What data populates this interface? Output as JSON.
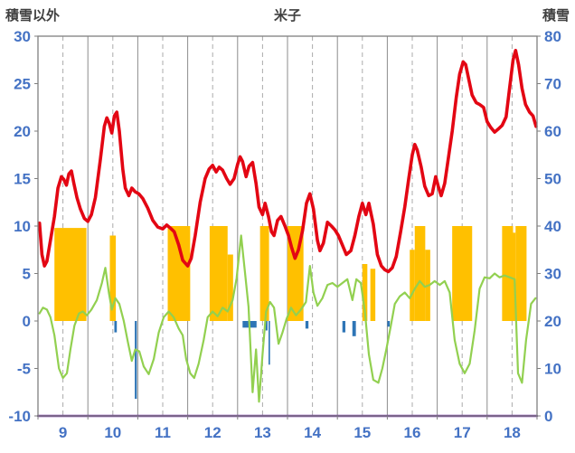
{
  "header": {
    "left_label": "積雪以外",
    "title": "米子",
    "right_label": "積雪"
  },
  "colors": {
    "axis_text": "#4472c4",
    "header_text": "#404040",
    "red_line": "#e30613",
    "green_line": "#92d050",
    "orange_bars": "#ffc000",
    "blue_bars": "#2e75b6",
    "purple_line": "#7030a0",
    "grid_major": "#8c8c8c",
    "grid_minor": "#ababab",
    "border": "#7f7f7f"
  },
  "chart_data": {
    "type": "line",
    "title": "米子",
    "left_axis": {
      "label": "積雪以外",
      "min": -10,
      "max": 30,
      "ticks": [
        -10,
        -5,
        0,
        5,
        10,
        15,
        20,
        25,
        30
      ]
    },
    "right_axis": {
      "label": "積雪",
      "min": 0,
      "max": 80,
      "ticks": [
        0,
        10,
        20,
        30,
        40,
        50,
        60,
        70,
        80
      ]
    },
    "x_axis": {
      "labels": [
        "9",
        "10",
        "11",
        "12",
        "13",
        "14",
        "15",
        "16",
        "17",
        "18"
      ],
      "range": [
        0,
        10
      ]
    },
    "grid": {
      "major_on": true,
      "minor_dashed": true
    },
    "series": [
      {
        "name": "orange-bars",
        "type": "bars",
        "axis": "left",
        "color": "#ffc000",
        "segments": [
          [
            0.33,
            0.97,
            9.8
          ],
          [
            1.44,
            1.56,
            9.0
          ],
          [
            2.6,
            3.05,
            10
          ],
          [
            3.44,
            3.8,
            10
          ],
          [
            3.8,
            3.91,
            7.0
          ],
          [
            4.45,
            4.63,
            10
          ],
          [
            5.0,
            5.32,
            10
          ],
          [
            6.5,
            6.6,
            6.0
          ],
          [
            6.66,
            6.76,
            5.5
          ],
          [
            7.45,
            7.55,
            7.5
          ],
          [
            7.55,
            7.76,
            10
          ],
          [
            7.76,
            7.86,
            7.5
          ],
          [
            8.3,
            8.7,
            10
          ],
          [
            9.3,
            9.52,
            10
          ],
          [
            9.52,
            9.57,
            9.3
          ],
          [
            9.57,
            9.79,
            10
          ]
        ]
      },
      {
        "name": "blue-bars",
        "type": "bars",
        "axis": "left",
        "color": "#2e75b6",
        "segments": [
          [
            1.53,
            1.58,
            -1.2
          ],
          [
            1.94,
            1.98,
            -8.2
          ],
          [
            4.1,
            4.38,
            -0.7
          ],
          [
            4.56,
            4.6,
            -1.0
          ],
          [
            4.62,
            4.65,
            -4.6
          ],
          [
            5.36,
            5.42,
            -0.8
          ],
          [
            6.1,
            6.16,
            -1.2
          ],
          [
            6.3,
            6.37,
            -1.6
          ],
          [
            7.0,
            7.05,
            -0.6
          ]
        ]
      },
      {
        "name": "purple-baseline",
        "type": "line",
        "axis": "right",
        "color": "#7030a0",
        "width": 2.5,
        "points": [
          [
            0,
            0
          ],
          [
            10,
            0
          ]
        ]
      },
      {
        "name": "green-line",
        "type": "line",
        "axis": "left",
        "color": "#92d050",
        "width": 2.2,
        "points": [
          [
            0.03,
            0.8
          ],
          [
            0.1,
            1.4
          ],
          [
            0.18,
            1.2
          ],
          [
            0.25,
            0.4
          ],
          [
            0.33,
            -1.5
          ],
          [
            0.42,
            -5.0
          ],
          [
            0.5,
            -6.0
          ],
          [
            0.58,
            -5.5
          ],
          [
            0.65,
            -3.0
          ],
          [
            0.73,
            -0.5
          ],
          [
            0.82,
            0.8
          ],
          [
            0.9,
            1.0
          ],
          [
            0.98,
            0.6
          ],
          [
            1.07,
            1.2
          ],
          [
            1.18,
            2.2
          ],
          [
            1.28,
            4.0
          ],
          [
            1.35,
            5.6
          ],
          [
            1.42,
            3.0
          ],
          [
            1.48,
            1.2
          ],
          [
            1.55,
            2.4
          ],
          [
            1.63,
            1.8
          ],
          [
            1.72,
            0.0
          ],
          [
            1.8,
            -2.2
          ],
          [
            1.88,
            -4.2
          ],
          [
            1.95,
            -3.0
          ],
          [
            2.03,
            -3.2
          ],
          [
            2.12,
            -4.8
          ],
          [
            2.22,
            -5.6
          ],
          [
            2.32,
            -4.0
          ],
          [
            2.42,
            -1.2
          ],
          [
            2.52,
            0.4
          ],
          [
            2.62,
            1.0
          ],
          [
            2.72,
            0.4
          ],
          [
            2.82,
            -0.8
          ],
          [
            2.9,
            -1.5
          ],
          [
            2.97,
            -4.0
          ],
          [
            3.05,
            -5.5
          ],
          [
            3.13,
            -6.0
          ],
          [
            3.22,
            -4.5
          ],
          [
            3.32,
            -2.0
          ],
          [
            3.4,
            0.4
          ],
          [
            3.5,
            1.0
          ],
          [
            3.6,
            0.5
          ],
          [
            3.7,
            1.4
          ],
          [
            3.8,
            1.0
          ],
          [
            3.9,
            2.2
          ],
          [
            3.98,
            4.5
          ],
          [
            4.07,
            9.0
          ],
          [
            4.15,
            5.0
          ],
          [
            4.22,
            1.5
          ],
          [
            4.3,
            -7.5
          ],
          [
            4.37,
            -3.0
          ],
          [
            4.43,
            -8.5
          ],
          [
            4.5,
            -3.5
          ],
          [
            4.57,
            1.0
          ],
          [
            4.65,
            2.0
          ],
          [
            4.73,
            1.4
          ],
          [
            4.82,
            -2.4
          ],
          [
            4.9,
            -1.2
          ],
          [
            4.98,
            0.2
          ],
          [
            5.07,
            1.4
          ],
          [
            5.17,
            0.6
          ],
          [
            5.27,
            1.2
          ],
          [
            5.37,
            2.0
          ],
          [
            5.45,
            5.8
          ],
          [
            5.52,
            3.0
          ],
          [
            5.6,
            1.6
          ],
          [
            5.7,
            2.4
          ],
          [
            5.8,
            3.8
          ],
          [
            5.9,
            4.0
          ],
          [
            6.0,
            3.6
          ],
          [
            6.1,
            4.0
          ],
          [
            6.2,
            4.4
          ],
          [
            6.3,
            2.2
          ],
          [
            6.38,
            4.4
          ],
          [
            6.47,
            4.0
          ],
          [
            6.55,
            1.0
          ],
          [
            6.63,
            -3.5
          ],
          [
            6.72,
            -6.2
          ],
          [
            6.82,
            -6.5
          ],
          [
            6.9,
            -5.0
          ],
          [
            6.98,
            -3.0
          ],
          [
            7.07,
            -0.5
          ],
          [
            7.15,
            1.8
          ],
          [
            7.25,
            2.6
          ],
          [
            7.35,
            3.0
          ],
          [
            7.45,
            2.4
          ],
          [
            7.55,
            3.4
          ],
          [
            7.65,
            4.2
          ],
          [
            7.75,
            3.6
          ],
          [
            7.85,
            3.8
          ],
          [
            7.95,
            4.2
          ],
          [
            8.05,
            3.8
          ],
          [
            8.15,
            4.2
          ],
          [
            8.25,
            3.0
          ],
          [
            8.35,
            -2.0
          ],
          [
            8.45,
            -4.5
          ],
          [
            8.55,
            -5.5
          ],
          [
            8.65,
            -4.5
          ],
          [
            8.75,
            -1.0
          ],
          [
            8.85,
            3.4
          ],
          [
            8.95,
            4.6
          ],
          [
            9.05,
            4.5
          ],
          [
            9.15,
            5.0
          ],
          [
            9.25,
            4.6
          ],
          [
            9.35,
            4.8
          ],
          [
            9.45,
            4.6
          ],
          [
            9.55,
            4.4
          ],
          [
            9.62,
            -5.5
          ],
          [
            9.7,
            -6.5
          ],
          [
            9.78,
            -2.0
          ],
          [
            9.88,
            1.8
          ],
          [
            9.97,
            2.4
          ]
        ]
      },
      {
        "name": "red-line",
        "type": "line",
        "axis": "left",
        "color": "#e30613",
        "width": 3.6,
        "points": [
          [
            0.03,
            10.3
          ],
          [
            0.08,
            7.0
          ],
          [
            0.13,
            5.8
          ],
          [
            0.18,
            6.3
          ],
          [
            0.25,
            8.5
          ],
          [
            0.33,
            11.0
          ],
          [
            0.4,
            14.0
          ],
          [
            0.47,
            15.2
          ],
          [
            0.52,
            14.9
          ],
          [
            0.57,
            14.3
          ],
          [
            0.62,
            15.5
          ],
          [
            0.67,
            15.8
          ],
          [
            0.72,
            14.5
          ],
          [
            0.78,
            13.0
          ],
          [
            0.85,
            11.8
          ],
          [
            0.93,
            10.8
          ],
          [
            1.0,
            10.5
          ],
          [
            1.07,
            11.2
          ],
          [
            1.15,
            13.0
          ],
          [
            1.25,
            17.0
          ],
          [
            1.33,
            20.5
          ],
          [
            1.38,
            21.4
          ],
          [
            1.43,
            20.8
          ],
          [
            1.48,
            19.8
          ],
          [
            1.53,
            21.6
          ],
          [
            1.58,
            22.0
          ],
          [
            1.63,
            20.0
          ],
          [
            1.7,
            16.0
          ],
          [
            1.75,
            14.0
          ],
          [
            1.82,
            13.2
          ],
          [
            1.88,
            14.0
          ],
          [
            1.95,
            13.6
          ],
          [
            2.02,
            13.4
          ],
          [
            2.1,
            12.9
          ],
          [
            2.2,
            11.9
          ],
          [
            2.3,
            10.6
          ],
          [
            2.4,
            9.9
          ],
          [
            2.5,
            9.7
          ],
          [
            2.58,
            10.1
          ],
          [
            2.65,
            9.8
          ],
          [
            2.73,
            9.4
          ],
          [
            2.82,
            8.0
          ],
          [
            2.9,
            6.4
          ],
          [
            3.0,
            5.8
          ],
          [
            3.07,
            6.6
          ],
          [
            3.15,
            9.0
          ],
          [
            3.25,
            12.5
          ],
          [
            3.35,
            15.0
          ],
          [
            3.43,
            16.0
          ],
          [
            3.5,
            16.4
          ],
          [
            3.57,
            15.7
          ],
          [
            3.63,
            16.2
          ],
          [
            3.7,
            15.9
          ],
          [
            3.78,
            15.0
          ],
          [
            3.85,
            14.4
          ],
          [
            3.93,
            15.0
          ],
          [
            4.0,
            16.5
          ],
          [
            4.05,
            17.3
          ],
          [
            4.1,
            16.8
          ],
          [
            4.17,
            15.2
          ],
          [
            4.23,
            16.3
          ],
          [
            4.3,
            16.7
          ],
          [
            4.37,
            14.5
          ],
          [
            4.43,
            12.0
          ],
          [
            4.5,
            11.2
          ],
          [
            4.55,
            12.4
          ],
          [
            4.62,
            11.0
          ],
          [
            4.68,
            9.4
          ],
          [
            4.73,
            9.0
          ],
          [
            4.8,
            10.6
          ],
          [
            4.87,
            11.0
          ],
          [
            4.95,
            10.0
          ],
          [
            5.02,
            9.0
          ],
          [
            5.08,
            7.8
          ],
          [
            5.15,
            6.6
          ],
          [
            5.22,
            7.5
          ],
          [
            5.3,
            9.5
          ],
          [
            5.38,
            12.4
          ],
          [
            5.45,
            13.4
          ],
          [
            5.52,
            11.8
          ],
          [
            5.6,
            8.5
          ],
          [
            5.65,
            7.4
          ],
          [
            5.72,
            8.2
          ],
          [
            5.8,
            10.4
          ],
          [
            5.88,
            10.0
          ],
          [
            5.95,
            9.6
          ],
          [
            6.02,
            9.0
          ],
          [
            6.1,
            8.0
          ],
          [
            6.18,
            7.0
          ],
          [
            6.27,
            7.4
          ],
          [
            6.35,
            9.0
          ],
          [
            6.43,
            11.0
          ],
          [
            6.5,
            12.4
          ],
          [
            6.57,
            11.2
          ],
          [
            6.63,
            12.4
          ],
          [
            6.72,
            10.2
          ],
          [
            6.8,
            7.0
          ],
          [
            6.88,
            5.8
          ],
          [
            6.95,
            5.4
          ],
          [
            7.02,
            5.2
          ],
          [
            7.1,
            5.6
          ],
          [
            7.18,
            6.8
          ],
          [
            7.27,
            9.5
          ],
          [
            7.35,
            12.0
          ],
          [
            7.43,
            15.0
          ],
          [
            7.5,
            17.5
          ],
          [
            7.55,
            18.6
          ],
          [
            7.6,
            18.0
          ],
          [
            7.68,
            16.2
          ],
          [
            7.75,
            14.2
          ],
          [
            7.83,
            13.2
          ],
          [
            7.9,
            13.4
          ],
          [
            7.97,
            15.2
          ],
          [
            8.02,
            14.2
          ],
          [
            8.08,
            13.2
          ],
          [
            8.15,
            14.5
          ],
          [
            8.22,
            17.0
          ],
          [
            8.3,
            20.0
          ],
          [
            8.38,
            23.5
          ],
          [
            8.45,
            26.0
          ],
          [
            8.52,
            27.3
          ],
          [
            8.57,
            27.0
          ],
          [
            8.63,
            25.5
          ],
          [
            8.7,
            23.8
          ],
          [
            8.78,
            23.0
          ],
          [
            8.85,
            22.8
          ],
          [
            8.93,
            22.5
          ],
          [
            9.0,
            21.0
          ],
          [
            9.07,
            20.4
          ],
          [
            9.15,
            19.9
          ],
          [
            9.22,
            20.2
          ],
          [
            9.3,
            20.6
          ],
          [
            9.38,
            21.5
          ],
          [
            9.45,
            24.5
          ],
          [
            9.52,
            27.5
          ],
          [
            9.57,
            28.5
          ],
          [
            9.63,
            27.0
          ],
          [
            9.7,
            24.5
          ],
          [
            9.77,
            22.8
          ],
          [
            9.85,
            22.0
          ],
          [
            9.92,
            21.6
          ],
          [
            9.98,
            20.5
          ]
        ]
      }
    ]
  }
}
